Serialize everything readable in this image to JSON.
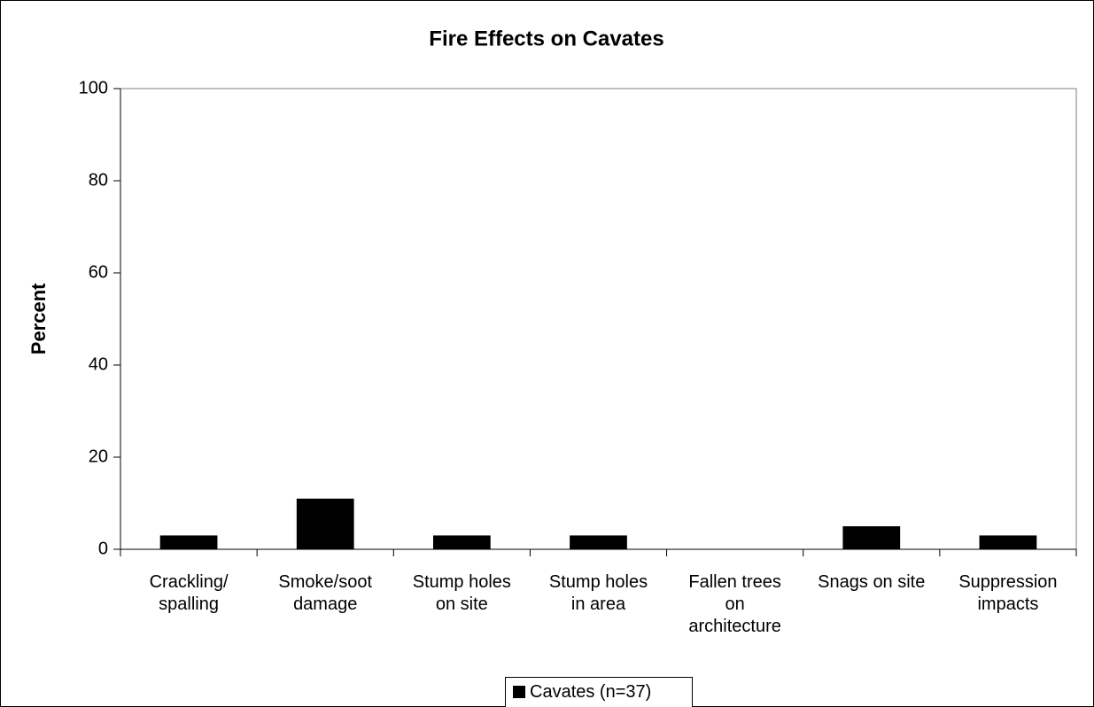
{
  "chart_data": {
    "type": "bar",
    "title": "Fire Effects on Cavates",
    "y_label": "Percent",
    "categories": [
      "Crackling/ spalling",
      "Smoke/soot damage",
      "Stump holes on site",
      "Stump holes in area",
      "Fallen trees on architecture",
      "Snags on site",
      "Suppression impacts"
    ],
    "series": [
      {
        "name": "Cavates (n=37)",
        "color": "#000000",
        "values": [
          3,
          11,
          3,
          3,
          0,
          5,
          3
        ]
      }
    ],
    "ylim": [
      0,
      100
    ],
    "yticks": [
      0,
      20,
      40,
      60,
      80,
      100
    ],
    "grid": false,
    "legend": "bottom"
  }
}
